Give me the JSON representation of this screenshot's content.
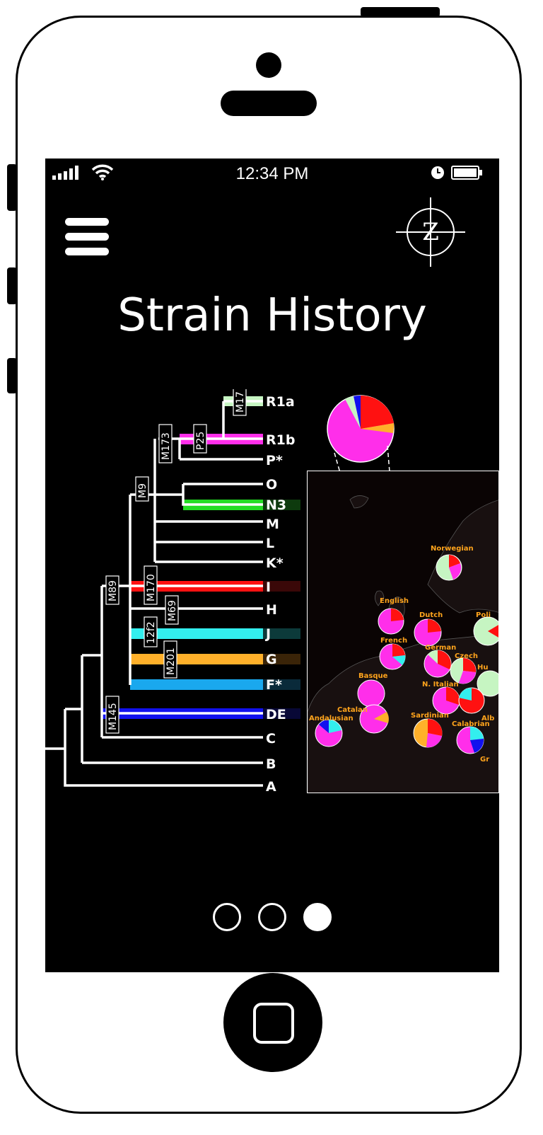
{
  "status_bar": {
    "time": "12:34 PM",
    "signal_icon": "signal-bars-icon",
    "wifi_icon": "wifi-icon",
    "clock_icon": "alarm-clock-icon",
    "battery_icon": "battery-icon"
  },
  "header": {
    "menu_icon": "hamburger-menu-icon",
    "logo_letter": "Z",
    "title": "Strain History"
  },
  "tree": {
    "leaves": [
      {
        "label": "R1a",
        "color": "#c6f5c2"
      },
      {
        "label": "R1b",
        "color": "#ff2eea"
      },
      {
        "label": "P*",
        "color": ""
      },
      {
        "label": "O",
        "color": ""
      },
      {
        "label": "N3",
        "color": "#22dd22"
      },
      {
        "label": "M",
        "color": ""
      },
      {
        "label": "L",
        "color": ""
      },
      {
        "label": "K*",
        "color": ""
      },
      {
        "label": "I",
        "color": "#ff1111"
      },
      {
        "label": "H",
        "color": ""
      },
      {
        "label": "J",
        "color": "#33eeee"
      },
      {
        "label": "G",
        "color": "#ffb02a"
      },
      {
        "label": "F*",
        "color": "#1aa8ee"
      },
      {
        "label": "DE",
        "color": "#1111ee"
      },
      {
        "label": "C",
        "color": ""
      },
      {
        "label": "B",
        "color": ""
      },
      {
        "label": "A",
        "color": ""
      }
    ],
    "markers": [
      "M17",
      "P25",
      "M173",
      "M9",
      "M89",
      "M170",
      "M69",
      "12f2",
      "M201",
      "M145"
    ]
  },
  "map": {
    "places": [
      "Norwegian",
      "English",
      "Dutch",
      "Poli",
      "French",
      "German",
      "Czech",
      "Hu",
      "Basque",
      "N. Italian",
      "Catalan",
      "Andalusian",
      "Sardinian",
      "Alb",
      "Calabrian",
      "Gr"
    ]
  },
  "pager": {
    "pages": [
      "page-1",
      "page-2",
      "page-3"
    ],
    "active_index": 2
  }
}
